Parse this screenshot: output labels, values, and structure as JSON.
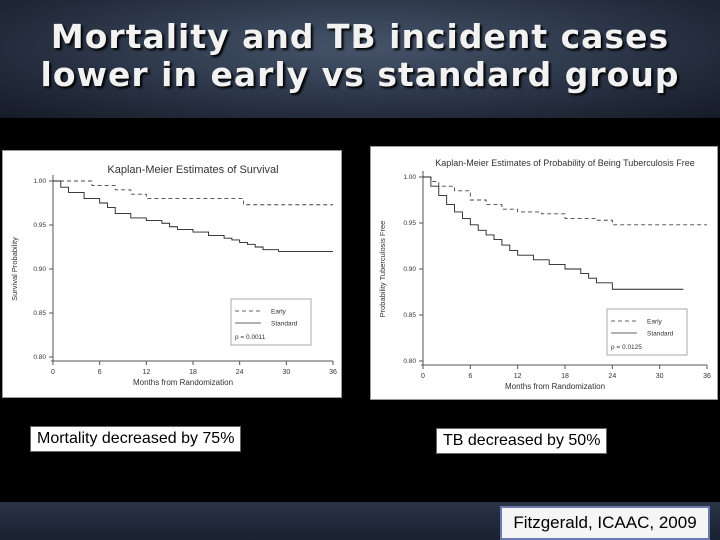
{
  "slide": {
    "title_line1": "Mortality and TB incident cases",
    "title_line2": "lower in early vs standard group",
    "caption_left": "Mortality decreased by 75%",
    "caption_right": "TB decreased by 50%",
    "citation": "Fitzgerald, ICAAC, 2009"
  },
  "chart_data": [
    {
      "type": "line",
      "title": "Kaplan-Meier Estimates of Survival",
      "xlabel": "Months from Randomization",
      "ylabel": "Survival Probability",
      "xlim": [
        0,
        36
      ],
      "ylim": [
        0.8,
        1.0
      ],
      "xticks": [
        0,
        6,
        12,
        18,
        24,
        30,
        36
      ],
      "yticks": [
        0.8,
        0.85,
        0.9,
        0.95,
        1.0
      ],
      "xtick_labels": [
        "0",
        "6",
        "12",
        "18",
        "24",
        "30",
        "36"
      ],
      "ytick_labels": [
        "0.80",
        "0.85",
        "0.90",
        "0.95",
        "1.00"
      ],
      "legend": {
        "position": "bottom-right",
        "entries": [
          "Early",
          "Standard"
        ]
      },
      "annotation": "p = 0.0011",
      "series": [
        {
          "name": "Early",
          "style": "dashed",
          "x": [
            0,
            3,
            5,
            8,
            10,
            12,
            24,
            24.5,
            36
          ],
          "y": [
            1.0,
            1.0,
            0.995,
            0.99,
            0.985,
            0.98,
            0.98,
            0.973,
            0.973
          ]
        },
        {
          "name": "Standard",
          "style": "solid",
          "x": [
            0,
            1,
            2,
            4,
            6,
            7,
            8,
            10,
            12,
            14,
            15,
            16,
            18,
            20,
            22,
            23,
            24,
            25,
            26,
            27,
            29,
            36
          ],
          "y": [
            1.0,
            0.993,
            0.987,
            0.98,
            0.975,
            0.97,
            0.963,
            0.958,
            0.955,
            0.952,
            0.948,
            0.945,
            0.942,
            0.938,
            0.935,
            0.933,
            0.93,
            0.928,
            0.925,
            0.922,
            0.92,
            0.92
          ]
        }
      ]
    },
    {
      "type": "line",
      "title": "Kaplan-Meier Estimates of Probability of Being Tuberculosis Free",
      "xlabel": "Months from Randomization",
      "ylabel": "Probability Tuberculosis Free",
      "xlim": [
        0,
        36
      ],
      "ylim": [
        0.8,
        1.0
      ],
      "xticks": [
        0,
        6,
        12,
        18,
        24,
        30,
        36
      ],
      "yticks": [
        0.8,
        0.85,
        0.9,
        0.95,
        1.0
      ],
      "xtick_labels": [
        "0",
        "6",
        "12",
        "18",
        "24",
        "30",
        "36"
      ],
      "ytick_labels": [
        "0.80",
        "0.85",
        "0.90",
        "0.95",
        "1.00"
      ],
      "legend": {
        "position": "bottom-right",
        "entries": [
          "Early",
          "Standard"
        ]
      },
      "annotation": "p = 0.0125",
      "series": [
        {
          "name": "Early",
          "style": "dashed",
          "x": [
            0,
            1,
            2,
            4,
            6,
            8,
            10,
            12,
            15,
            18,
            22,
            24,
            36
          ],
          "y": [
            1.0,
            0.995,
            0.99,
            0.985,
            0.975,
            0.97,
            0.965,
            0.962,
            0.96,
            0.955,
            0.953,
            0.948,
            0.948
          ]
        },
        {
          "name": "Standard",
          "style": "solid",
          "x": [
            0,
            1,
            2,
            3,
            4,
            5,
            6,
            7,
            8,
            9,
            10,
            11,
            12,
            14,
            16,
            18,
            20,
            21,
            22,
            24,
            33
          ],
          "y": [
            1.0,
            0.99,
            0.98,
            0.97,
            0.962,
            0.955,
            0.948,
            0.942,
            0.937,
            0.932,
            0.926,
            0.92,
            0.915,
            0.91,
            0.905,
            0.9,
            0.895,
            0.89,
            0.885,
            0.878,
            0.878
          ]
        }
      ]
    }
  ]
}
